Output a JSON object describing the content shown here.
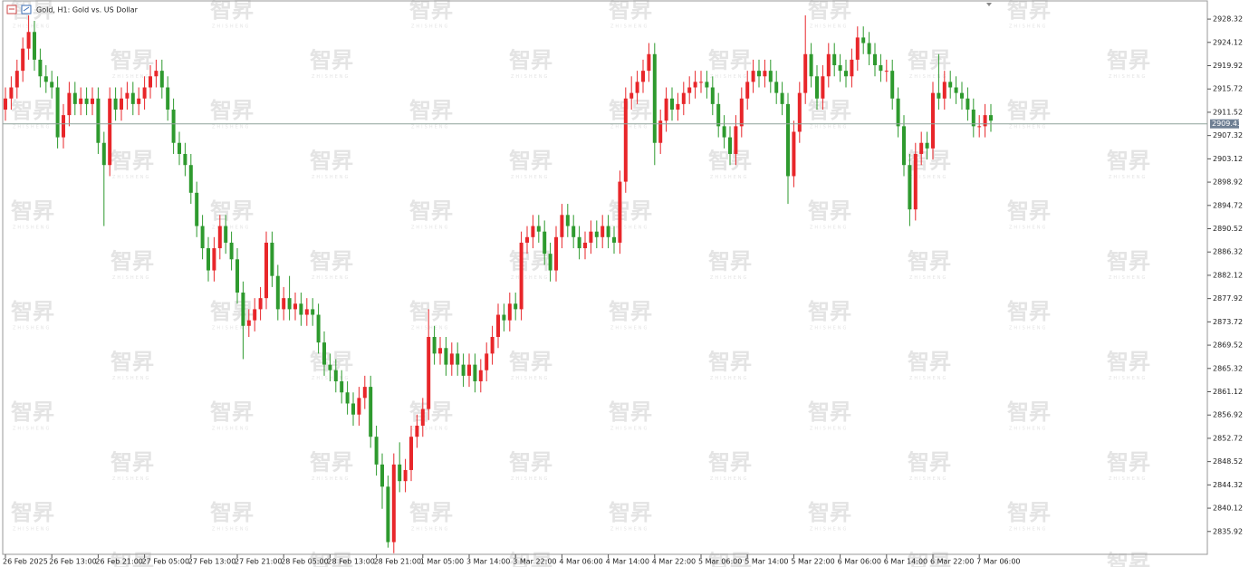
{
  "chart_data": {
    "type": "candlestick",
    "title": "Gold, H1:  Gold vs. US Dollar",
    "watermark": "智昇",
    "watermark_sub": "ZHISHENG",
    "up_color": "#e8262a",
    "down_color": "#2e9a2e",
    "current_price": 2909.43,
    "ylim": [
      2831.8,
      2931.6
    ],
    "yticks": [
      2928.32,
      2924.12,
      2919.92,
      2915.72,
      2911.52,
      2907.32,
      2903.12,
      2898.92,
      2894.72,
      2890.52,
      2886.32,
      2882.12,
      2877.92,
      2873.72,
      2869.52,
      2865.32,
      2861.12,
      2856.92,
      2852.72,
      2848.52,
      2844.32,
      2840.12,
      2835.92
    ],
    "grid": false,
    "categories": [
      "26 Feb 2025",
      null,
      null,
      null,
      null,
      null,
      null,
      null,
      "26 Feb 13:00",
      null,
      null,
      null,
      null,
      null,
      null,
      null,
      "26 Feb 21:00",
      null,
      null,
      null,
      null,
      null,
      null,
      null,
      "27 Feb 05:00",
      null,
      null,
      null,
      null,
      null,
      null,
      null,
      "27 Feb 13:00",
      null,
      null,
      null,
      null,
      null,
      null,
      null,
      "27 Feb 21:00",
      null,
      null,
      null,
      null,
      null,
      null,
      null,
      "28 Feb 05:00",
      null,
      null,
      null,
      null,
      null,
      null,
      null,
      "28 Feb 13:00",
      null,
      null,
      null,
      null,
      null,
      null,
      null,
      "28 Feb 21:00",
      null,
      null,
      null,
      null,
      null,
      null,
      null,
      "1 Mar 05:00",
      null,
      null,
      null,
      null,
      null,
      null,
      null,
      "3 Mar 14:00",
      null,
      null,
      null,
      null,
      null,
      null,
      null,
      "3 Mar 22:00",
      null,
      null,
      null,
      null,
      null,
      null,
      null,
      "4 Mar 06:00",
      null,
      null,
      null,
      null,
      null,
      null,
      null,
      "4 Mar 14:00",
      null,
      null,
      null,
      null,
      null,
      null,
      null,
      "4 Mar 22:00",
      null,
      null,
      null,
      null,
      null,
      null,
      null,
      "5 Mar 06:00",
      null,
      null,
      null,
      null,
      null,
      null,
      null,
      "5 Mar 14:00",
      null,
      null,
      null,
      null,
      null,
      null,
      null,
      "5 Mar 22:00",
      null,
      null,
      null,
      null,
      null,
      null,
      null,
      "6 Mar 06:00",
      null,
      null,
      null,
      null,
      null,
      null,
      null,
      "6 Mar 14:00",
      null,
      null,
      null,
      null,
      null,
      null,
      null,
      "6 Mar 22:00",
      null,
      null,
      null,
      null,
      null,
      null,
      null,
      "7 Mar 06:00",
      null,
      null
    ],
    "open": [
      2912,
      2914,
      2916,
      2919,
      2923,
      2926,
      2921,
      2918,
      2917,
      2916,
      2907,
      2911,
      2915,
      2913,
      2914,
      2913,
      2914,
      2906,
      2902,
      2914,
      2912,
      2914,
      2915,
      2913,
      2914,
      2916,
      2918,
      2919,
      2916,
      2912,
      2906,
      2904,
      2902,
      2897,
      2891,
      2887,
      2883,
      2887,
      2891,
      2888,
      2885,
      2879,
      2873,
      2874,
      2876,
      2878,
      2888,
      2882,
      2876,
      2878,
      2876,
      2877,
      2875,
      2876,
      2875,
      2870,
      2866,
      2865,
      2863,
      2861,
      2859,
      2857,
      2860,
      2862,
      2853,
      2848,
      2844,
      2834,
      2848,
      2845,
      2847,
      2853,
      2855,
      2858,
      2871,
      2868,
      2869,
      2866,
      2868,
      2866,
      2864,
      2866,
      2863,
      2865,
      2868,
      2871,
      2875,
      2874,
      2877,
      2876,
      2888,
      2889,
      2891,
      2890,
      2886,
      2883,
      2889,
      2893,
      2891,
      2889,
      2887,
      2888,
      2890,
      2889,
      2891,
      2889,
      2888,
      2899,
      2914,
      2915,
      2917,
      2919,
      2922,
      2906,
      2910,
      2914,
      2912,
      2913,
      2915,
      2916,
      2917,
      2917,
      2916,
      2913,
      2909,
      2907,
      2904,
      2909,
      2914,
      2917,
      2919,
      2918,
      2919,
      2917,
      2915,
      2913,
      2900,
      2908,
      2915,
      2922,
      2918,
      2914,
      2918,
      2922,
      2920,
      2919,
      2918,
      2921,
      2925,
      2924,
      2922,
      2920,
      2919,
      2919,
      2914,
      2909,
      2902,
      2894,
      2904,
      2906,
      2905,
      2915,
      2914,
      2917,
      2916,
      2915,
      2914,
      2912,
      2909,
      2909,
      2911
    ],
    "high": [
      2916,
      2918,
      2921,
      2925,
      2929,
      2928,
      2923,
      2920,
      2919,
      2918,
      2913,
      2917,
      2917,
      2916,
      2916,
      2916,
      2916,
      2908,
      2916,
      2916,
      2916,
      2917,
      2917,
      2916,
      2918,
      2920,
      2921,
      2921,
      2918,
      2914,
      2908,
      2906,
      2904,
      2899,
      2893,
      2889,
      2889,
      2893,
      2893,
      2890,
      2887,
      2881,
      2876,
      2878,
      2880,
      2890,
      2890,
      2884,
      2880,
      2882,
      2879,
      2879,
      2878,
      2878,
      2877,
      2872,
      2868,
      2867,
      2865,
      2863,
      2861,
      2862,
      2864,
      2864,
      2855,
      2850,
      2846,
      2850,
      2852,
      2849,
      2855,
      2857,
      2860,
      2876,
      2873,
      2871,
      2871,
      2870,
      2870,
      2868,
      2868,
      2868,
      2867,
      2870,
      2873,
      2877,
      2877,
      2879,
      2879,
      2890,
      2891,
      2893,
      2893,
      2892,
      2888,
      2891,
      2895,
      2895,
      2893,
      2891,
      2890,
      2892,
      2892,
      2893,
      2893,
      2891,
      2901,
      2916,
      2918,
      2919,
      2921,
      2924,
      2924,
      2912,
      2916,
      2916,
      2915,
      2917,
      2918,
      2919,
      2919,
      2919,
      2918,
      2915,
      2911,
      2909,
      2911,
      2916,
      2919,
      2921,
      2921,
      2921,
      2921,
      2919,
      2917,
      2915,
      2910,
      2917,
      2929,
      2924,
      2920,
      2920,
      2924,
      2924,
      2922,
      2921,
      2923,
      2927,
      2927,
      2926,
      2924,
      2922,
      2921,
      2921,
      2916,
      2911,
      2904,
      2906,
      2908,
      2908,
      2917,
      2922,
      2919,
      2919,
      2918,
      2917,
      2916,
      2914,
      2911,
      2913,
      2913
    ],
    "low": [
      2910,
      2912,
      2914,
      2917,
      2921,
      2919,
      2916,
      2915,
      2914,
      2905,
      2905,
      2909,
      2911,
      2911,
      2911,
      2911,
      2904,
      2891,
      2900,
      2910,
      2910,
      2912,
      2911,
      2911,
      2912,
      2914,
      2916,
      2914,
      2910,
      2904,
      2902,
      2900,
      2895,
      2889,
      2885,
      2881,
      2881,
      2885,
      2886,
      2883,
      2877,
      2867,
      2871,
      2872,
      2874,
      2876,
      2880,
      2874,
      2874,
      2874,
      2874,
      2873,
      2873,
      2873,
      2868,
      2864,
      2863,
      2861,
      2859,
      2857,
      2855,
      2855,
      2858,
      2851,
      2846,
      2840,
      2833,
      2832,
      2843,
      2843,
      2845,
      2851,
      2853,
      2856,
      2866,
      2866,
      2864,
      2864,
      2864,
      2862,
      2862,
      2861,
      2861,
      2863,
      2866,
      2869,
      2872,
      2872,
      2874,
      2874,
      2886,
      2887,
      2888,
      2884,
      2881,
      2881,
      2887,
      2889,
      2887,
      2885,
      2885,
      2886,
      2887,
      2887,
      2887,
      2886,
      2886,
      2897,
      2912,
      2913,
      2915,
      2917,
      2902,
      2904,
      2908,
      2910,
      2910,
      2911,
      2913,
      2914,
      2915,
      2914,
      2911,
      2907,
      2905,
      2902,
      2902,
      2907,
      2912,
      2915,
      2916,
      2916,
      2915,
      2913,
      2911,
      2895,
      2898,
      2906,
      2913,
      2916,
      2912,
      2912,
      2916,
      2918,
      2917,
      2916,
      2916,
      2919,
      2922,
      2920,
      2918,
      2917,
      2917,
      2912,
      2907,
      2900,
      2891,
      2892,
      2902,
      2903,
      2903,
      2912,
      2912,
      2914,
      2913,
      2912,
      2910,
      2907,
      2907,
      2907,
      2908
    ],
    "close": [
      2914,
      2916,
      2919,
      2923,
      2926,
      2921,
      2918,
      2917,
      2916,
      2907,
      2911,
      2915,
      2913,
      2914,
      2913,
      2914,
      2906,
      2902,
      2914,
      2912,
      2914,
      2915,
      2913,
      2914,
      2916,
      2918,
      2919,
      2916,
      2912,
      2906,
      2904,
      2902,
      2897,
      2891,
      2887,
      2883,
      2887,
      2891,
      2888,
      2885,
      2879,
      2873,
      2874,
      2876,
      2878,
      2888,
      2882,
      2876,
      2878,
      2876,
      2877,
      2875,
      2876,
      2875,
      2870,
      2866,
      2865,
      2863,
      2861,
      2859,
      2857,
      2860,
      2862,
      2853,
      2848,
      2844,
      2834,
      2848,
      2845,
      2847,
      2853,
      2855,
      2858,
      2871,
      2868,
      2869,
      2866,
      2868,
      2866,
      2864,
      2866,
      2863,
      2865,
      2868,
      2871,
      2875,
      2874,
      2877,
      2876,
      2888,
      2889,
      2891,
      2890,
      2886,
      2883,
      2889,
      2893,
      2891,
      2889,
      2887,
      2888,
      2890,
      2889,
      2891,
      2889,
      2888,
      2899,
      2914,
      2915,
      2917,
      2919,
      2922,
      2906,
      2910,
      2914,
      2912,
      2913,
      2915,
      2916,
      2917,
      2917,
      2916,
      2913,
      2909,
      2907,
      2904,
      2909,
      2914,
      2917,
      2919,
      2918,
      2919,
      2917,
      2915,
      2913,
      2900,
      2908,
      2915,
      2922,
      2918,
      2914,
      2918,
      2922,
      2920,
      2919,
      2918,
      2921,
      2925,
      2924,
      2922,
      2920,
      2919,
      2919,
      2914,
      2909,
      2902,
      2894,
      2904,
      2906,
      2905,
      2915,
      2914,
      2917,
      2916,
      2915,
      2914,
      2912,
      2909,
      2909,
      2911,
      2910
    ]
  }
}
